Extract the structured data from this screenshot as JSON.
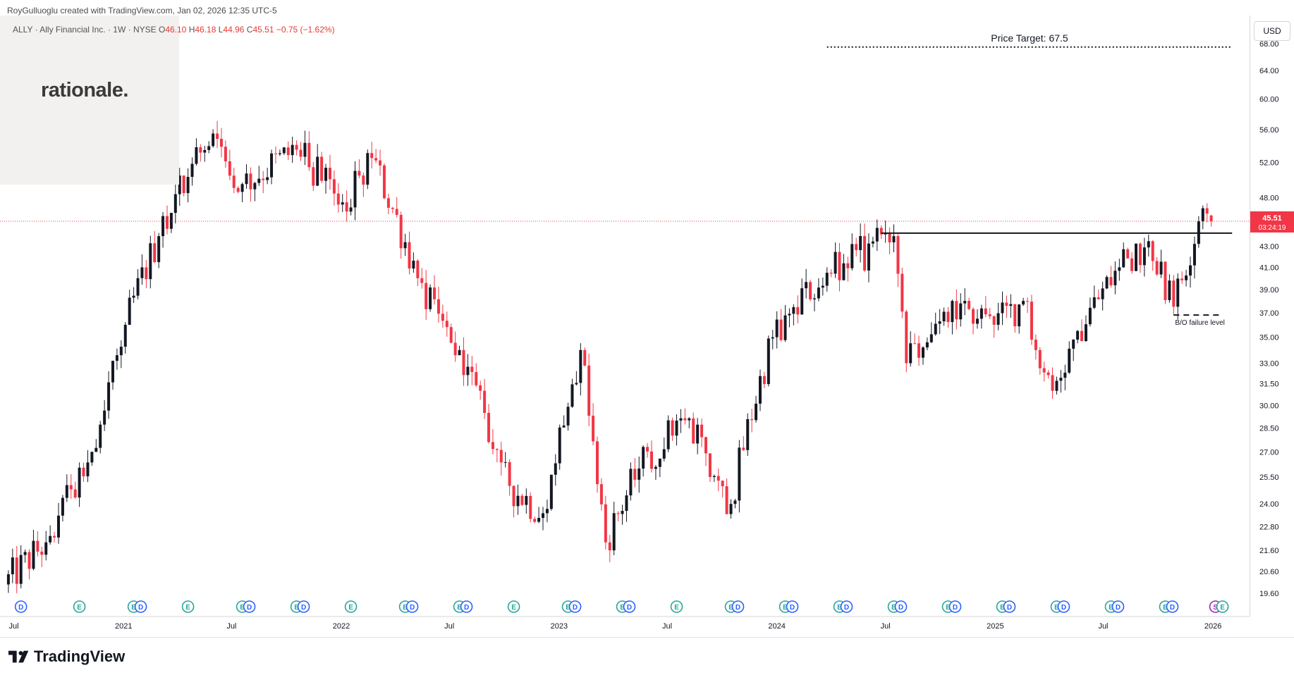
{
  "header": {
    "credit": "RoyGulluoglu created with TradingView.com, Jan 02, 2026 12:35 UTC-5",
    "symbol_line": "ALLY · Ally Financial Inc. · 1W · NYSE",
    "open_label": "O",
    "open_value": "46.10",
    "high_label": "H",
    "high_value": "46.18",
    "low_label": "L",
    "low_value": "44.96",
    "close_label": "C",
    "close_value": "45.51",
    "change": "−0.75 (−1.62%)"
  },
  "logo": {
    "text": "rationale."
  },
  "axis": {
    "currency_button": "USD"
  },
  "price_badge": {
    "price": "45.51",
    "countdown": "03:24:19"
  },
  "annotations": {
    "price_target": "Price Target: 67.5",
    "bo_failure": "B/O failure level"
  },
  "brand": {
    "name": "TradingView"
  },
  "colors": {
    "up": "#26a69a",
    "down": "#f23645",
    "candle_up": "#131722",
    "candle_down": "#f23645",
    "last_price_line": "#f23645"
  },
  "chart_data": {
    "type": "candlestick",
    "symbol": "ALLY",
    "interval": "1W",
    "scale": "log",
    "y_ticks": [
      19.6,
      20.6,
      21.6,
      22.8,
      24.0,
      25.5,
      27.0,
      28.5,
      30.0,
      31.5,
      33.0,
      35.0,
      37.0,
      39.0,
      41.0,
      43.0,
      48.0,
      52.0,
      56.0,
      60.0,
      64.0,
      68.0
    ],
    "y_range": [
      18.6,
      72.5
    ],
    "x_range": [
      "2020-06-15",
      "2026-02-23"
    ],
    "x_ticks": [
      {
        "label": "Jul",
        "date": "2020-07-01"
      },
      {
        "label": "2021",
        "date": "2021-01-01"
      },
      {
        "label": "Jul",
        "date": "2021-07-01"
      },
      {
        "label": "2022",
        "date": "2022-01-01"
      },
      {
        "label": "Jul",
        "date": "2022-07-01"
      },
      {
        "label": "2023",
        "date": "2023-01-01"
      },
      {
        "label": "Jul",
        "date": "2023-07-01"
      },
      {
        "label": "2024",
        "date": "2024-01-01"
      },
      {
        "label": "Jul",
        "date": "2024-07-01"
      },
      {
        "label": "2025",
        "date": "2025-01-01"
      },
      {
        "label": "Jul",
        "date": "2025-07-01"
      },
      {
        "label": "2026",
        "date": "2026-01-01"
      }
    ],
    "last_price": 45.51,
    "price_target": {
      "value": 67.5,
      "from": "2024-03-25",
      "to": "2026-02-02"
    },
    "resistance": {
      "value": 44.3,
      "from": "2024-06-24",
      "to": "2026-02-02"
    },
    "bo_failure_level": {
      "value": 36.8,
      "from": "2025-10-27",
      "to": "2026-01-12"
    },
    "keypoints": [
      {
        "date": "2020-06-15",
        "close": 20.0
      },
      {
        "date": "2020-08-24",
        "close": 22.0
      },
      {
        "date": "2020-11-09",
        "close": 27.0
      },
      {
        "date": "2021-01-04",
        "close": 36.0
      },
      {
        "date": "2021-03-01",
        "close": 44.0
      },
      {
        "date": "2021-05-31",
        "close": 55.5
      },
      {
        "date": "2021-07-19",
        "close": 49.5
      },
      {
        "date": "2021-10-18",
        "close": 53.5
      },
      {
        "date": "2022-01-03",
        "close": 47.5
      },
      {
        "date": "2022-02-21",
        "close": 52.5
      },
      {
        "date": "2022-05-09",
        "close": 40.0
      },
      {
        "date": "2022-07-18",
        "close": 34.0
      },
      {
        "date": "2022-10-10",
        "close": 25.0
      },
      {
        "date": "2022-12-05",
        "close": 23.5
      },
      {
        "date": "2023-02-06",
        "close": 34.0
      },
      {
        "date": "2023-03-20",
        "close": 22.0
      },
      {
        "date": "2023-05-15",
        "close": 26.0
      },
      {
        "date": "2023-07-31",
        "close": 29.0
      },
      {
        "date": "2023-10-16",
        "close": 24.0
      },
      {
        "date": "2023-12-25",
        "close": 35.0
      },
      {
        "date": "2024-03-25",
        "close": 40.5
      },
      {
        "date": "2024-07-15",
        "close": 44.0
      },
      {
        "date": "2024-08-05",
        "close": 33.0
      },
      {
        "date": "2024-11-11",
        "close": 38.0
      },
      {
        "date": "2024-12-30",
        "close": 36.0
      },
      {
        "date": "2025-02-17",
        "close": 38.0
      },
      {
        "date": "2025-04-07",
        "close": 31.0
      },
      {
        "date": "2025-05-19",
        "close": 35.5
      },
      {
        "date": "2025-07-28",
        "close": 41.0
      },
      {
        "date": "2025-09-15",
        "close": 43.5
      },
      {
        "date": "2025-10-27",
        "close": 37.5
      },
      {
        "date": "2025-12-08",
        "close": 45.5
      },
      {
        "date": "2025-12-22",
        "close": 46.3
      },
      {
        "date": "2025-12-29",
        "close": 45.51
      }
    ],
    "events": [
      {
        "date": "2020-07-13",
        "types": [
          "D"
        ]
      },
      {
        "date": "2020-10-19",
        "types": [
          "E"
        ]
      },
      {
        "date": "2021-01-18",
        "types": [
          "E",
          "D"
        ]
      },
      {
        "date": "2021-04-19",
        "types": [
          "E"
        ]
      },
      {
        "date": "2021-07-19",
        "types": [
          "E",
          "D"
        ]
      },
      {
        "date": "2021-10-18",
        "types": [
          "E",
          "D"
        ]
      },
      {
        "date": "2022-01-17",
        "types": [
          "E"
        ]
      },
      {
        "date": "2022-04-18",
        "types": [
          "E",
          "D"
        ]
      },
      {
        "date": "2022-07-18",
        "types": [
          "E",
          "D"
        ]
      },
      {
        "date": "2022-10-17",
        "types": [
          "E"
        ]
      },
      {
        "date": "2023-01-16",
        "types": [
          "E",
          "D"
        ]
      },
      {
        "date": "2023-04-17",
        "types": [
          "E",
          "D"
        ]
      },
      {
        "date": "2023-07-17",
        "types": [
          "E"
        ]
      },
      {
        "date": "2023-10-16",
        "types": [
          "E",
          "D"
        ]
      },
      {
        "date": "2024-01-15",
        "types": [
          "E",
          "D"
        ]
      },
      {
        "date": "2024-04-15",
        "types": [
          "E",
          "D"
        ]
      },
      {
        "date": "2024-07-15",
        "types": [
          "E",
          "D"
        ]
      },
      {
        "date": "2024-10-14",
        "types": [
          "E",
          "D"
        ]
      },
      {
        "date": "2025-01-13",
        "types": [
          "E",
          "D"
        ]
      },
      {
        "date": "2025-04-14",
        "types": [
          "E",
          "D"
        ]
      },
      {
        "date": "2025-07-14",
        "types": [
          "E",
          "D"
        ]
      },
      {
        "date": "2025-10-13",
        "types": [
          "E",
          "D"
        ]
      },
      {
        "date": "2026-01-05",
        "types": [
          "S",
          "E"
        ]
      }
    ]
  }
}
